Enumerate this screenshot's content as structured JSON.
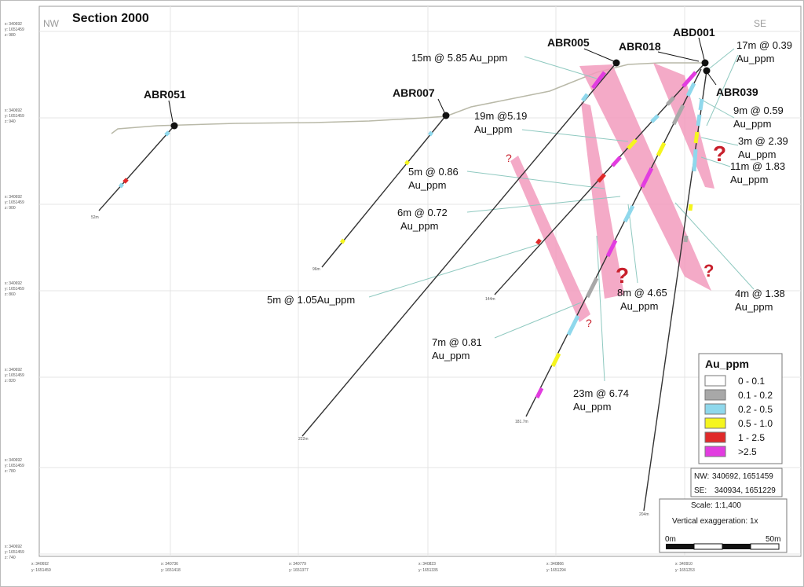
{
  "title": "Section 2000",
  "direction": {
    "left": "NW",
    "right": "SE"
  },
  "drillholes": [
    {
      "id": "ABR051",
      "depth_label": "52m"
    },
    {
      "id": "ABR007",
      "depth_label": "96m"
    },
    {
      "id": "ABR005",
      "depth_label": "222m"
    },
    {
      "id": "ABR018",
      "depth_label": "144m"
    },
    {
      "id": "ABD001",
      "depth_label": "181.7m"
    },
    {
      "id": "ABR039",
      "depth_label": "204m"
    }
  ],
  "intercepts": [
    {
      "line1": "15m @ 5.85 Au_ppm",
      "line2": ""
    },
    {
      "line1": "17m @ 0.39",
      "line2": "Au_ppm"
    },
    {
      "line1": "9m @ 0.59",
      "line2": "Au_ppm"
    },
    {
      "line1": "3m @ 2.39",
      "line2": "Au_ppm"
    },
    {
      "line1": "11m @ 1.83",
      "line2": "Au_ppm"
    },
    {
      "line1": "19m @5.19",
      "line2": "Au_ppm"
    },
    {
      "line1": "5m @ 0.86",
      "line2": "Au_ppm"
    },
    {
      "line1": "6m @ 0.72",
      "line2": "Au_ppm"
    },
    {
      "line1": "5m @ 1.05Au_ppm",
      "line2": ""
    },
    {
      "line1": "8m @ 4.65",
      "line2": "Au_ppm"
    },
    {
      "line1": "4m @ 1.38",
      "line2": "Au_ppm"
    },
    {
      "line1": "7m @ 0.81",
      "line2": "Au_ppm"
    },
    {
      "line1": "23m @ 6.74",
      "line2": "Au_ppm"
    }
  ],
  "uncertain_marker": "?",
  "legend": {
    "title": "Au_ppm",
    "items": [
      {
        "label": "0 - 0.1",
        "color": "#ffffff"
      },
      {
        "label": "0.1 - 0.2",
        "color": "#a8a8a8"
      },
      {
        "label": "0.2 - 0.5",
        "color": "#8fd8ec"
      },
      {
        "label": "0.5 - 1.0",
        "color": "#f5f51e"
      },
      {
        "label": "1 - 2.5",
        "color": "#e02a2a"
      },
      {
        "label": ">2.5",
        "color": "#e23ce0"
      }
    ]
  },
  "endpoints": {
    "nw_label": "NW:",
    "nw_value": "340692, 1651459",
    "se_label": "SE:",
    "se_value": "340934, 1651229"
  },
  "scale": {
    "text": "Scale: 1:1,400",
    "vertical": "Vertical exaggeration: 1x",
    "bar_start": "0m",
    "bar_end": "50m"
  },
  "y_axis": [
    {
      "x": "x: 340692",
      "y": "y: 1651459",
      "z": "z: 980"
    },
    {
      "x": "x: 340692",
      "y": "y: 1651459",
      "z": "z: 940"
    },
    {
      "x": "x: 340692",
      "y": "y: 1651459",
      "z": "z: 900"
    },
    {
      "x": "x: 340692",
      "y": "y: 1651459",
      "z": "z: 860"
    },
    {
      "x": "x: 340692",
      "y": "y: 1651459",
      "z": "z: 820"
    },
    {
      "x": "x: 340692",
      "y": "y: 1651459",
      "z": "z: 780"
    },
    {
      "x": "x: 340692",
      "y": "y: 1651459",
      "z": "z: 740"
    }
  ],
  "x_axis": [
    {
      "x": "x: 340692",
      "y": "y: 1651459"
    },
    {
      "x": "x: 340736",
      "y": "y: 1651418"
    },
    {
      "x": "x: 340779",
      "y": "y: 1651377"
    },
    {
      "x": "x: 340823",
      "y": "y: 1651335"
    },
    {
      "x": "x: 340866",
      "y": "y: 1651294"
    },
    {
      "x": "x: 340910",
      "y": "y: 1651253"
    }
  ]
}
